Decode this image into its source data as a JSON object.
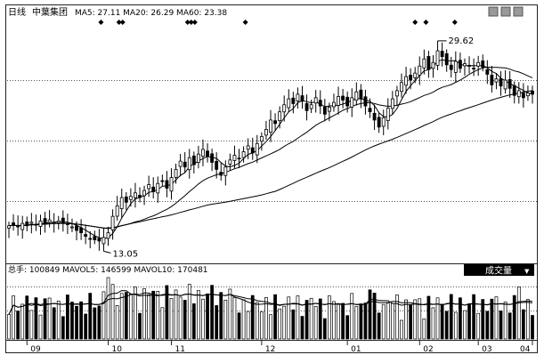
{
  "header": {
    "period": "日线",
    "stock_name": "中葉集团",
    "ma_text": "MA5: 27.11  MA20: 26.29  MA60: 23.38"
  },
  "volume_header": {
    "text": "总手: 100849  MAVOL5: 146599  MAVOL10: 170481",
    "selector_label": "成交量",
    "selector_arrow": "▼"
  },
  "price_annotations": {
    "high_label": "29.62",
    "low_label": "13.05"
  },
  "window_icons": [
    "minimize-icon",
    "restore-icon",
    "close-icon"
  ],
  "chart_data": {
    "type": "candlestick",
    "x_ticks": [
      "09",
      "10",
      "11",
      "12",
      "01",
      "02",
      "03",
      "04"
    ],
    "price": {
      "ma_summary": {
        "MA5": 27.11,
        "MA20": 26.29,
        "MA60": 23.38
      },
      "high": 29.62,
      "low": 13.05,
      "ylim": [
        11.5,
        31.5
      ],
      "close_series": [
        14.4,
        14.5,
        14.3,
        14.6,
        14.4,
        14.7,
        14.5,
        14.8,
        14.6,
        14.9,
        14.7,
        14.8,
        14.6,
        14.5,
        14.3,
        14.0,
        13.8,
        13.5,
        13.3,
        13.2,
        13.1,
        13.4,
        13.8,
        15.2,
        16.1,
        16.8,
        16.4,
        16.9,
        17.2,
        16.8,
        17.4,
        17.9,
        17.3,
        18.0,
        18.2,
        17.6,
        18.5,
        19.2,
        19.9,
        19.4,
        20.2,
        19.6,
        20.5,
        20.9,
        20.3,
        19.8,
        19.2,
        18.7,
        19.4,
        20.0,
        20.4,
        20.1,
        20.7,
        21.2,
        20.6,
        21.4,
        22.0,
        22.6,
        23.4,
        23.1,
        24.1,
        24.7,
        25.2,
        24.8,
        25.6,
        25.0,
        24.2,
        24.7,
        25.3,
        24.6,
        23.9,
        24.5,
        24.9,
        25.4,
        25.1,
        24.6,
        25.3,
        25.8,
        25.2,
        24.6,
        24.1,
        23.4,
        22.8,
        23.6,
        24.4,
        25.2,
        25.9,
        26.6,
        27.1,
        26.8,
        27.4,
        28.0,
        28.6,
        27.7,
        28.3,
        29.3,
        28.8,
        28.1,
        27.7,
        28.4,
        27.8,
        28.2,
        28.0,
        27.8,
        28.3,
        27.9,
        27.3,
        26.4,
        26.9,
        26.3,
        26.8,
        26.1,
        25.5,
        25.9,
        25.3,
        25.7,
        25.6
      ],
      "ma_lines": [
        "MA5",
        "MA20",
        "MA60"
      ],
      "signal_markers_count": 10
    },
    "volume": {
      "total": 100849,
      "MAVOL5": 146599,
      "MAVOL10": 170481
    }
  }
}
